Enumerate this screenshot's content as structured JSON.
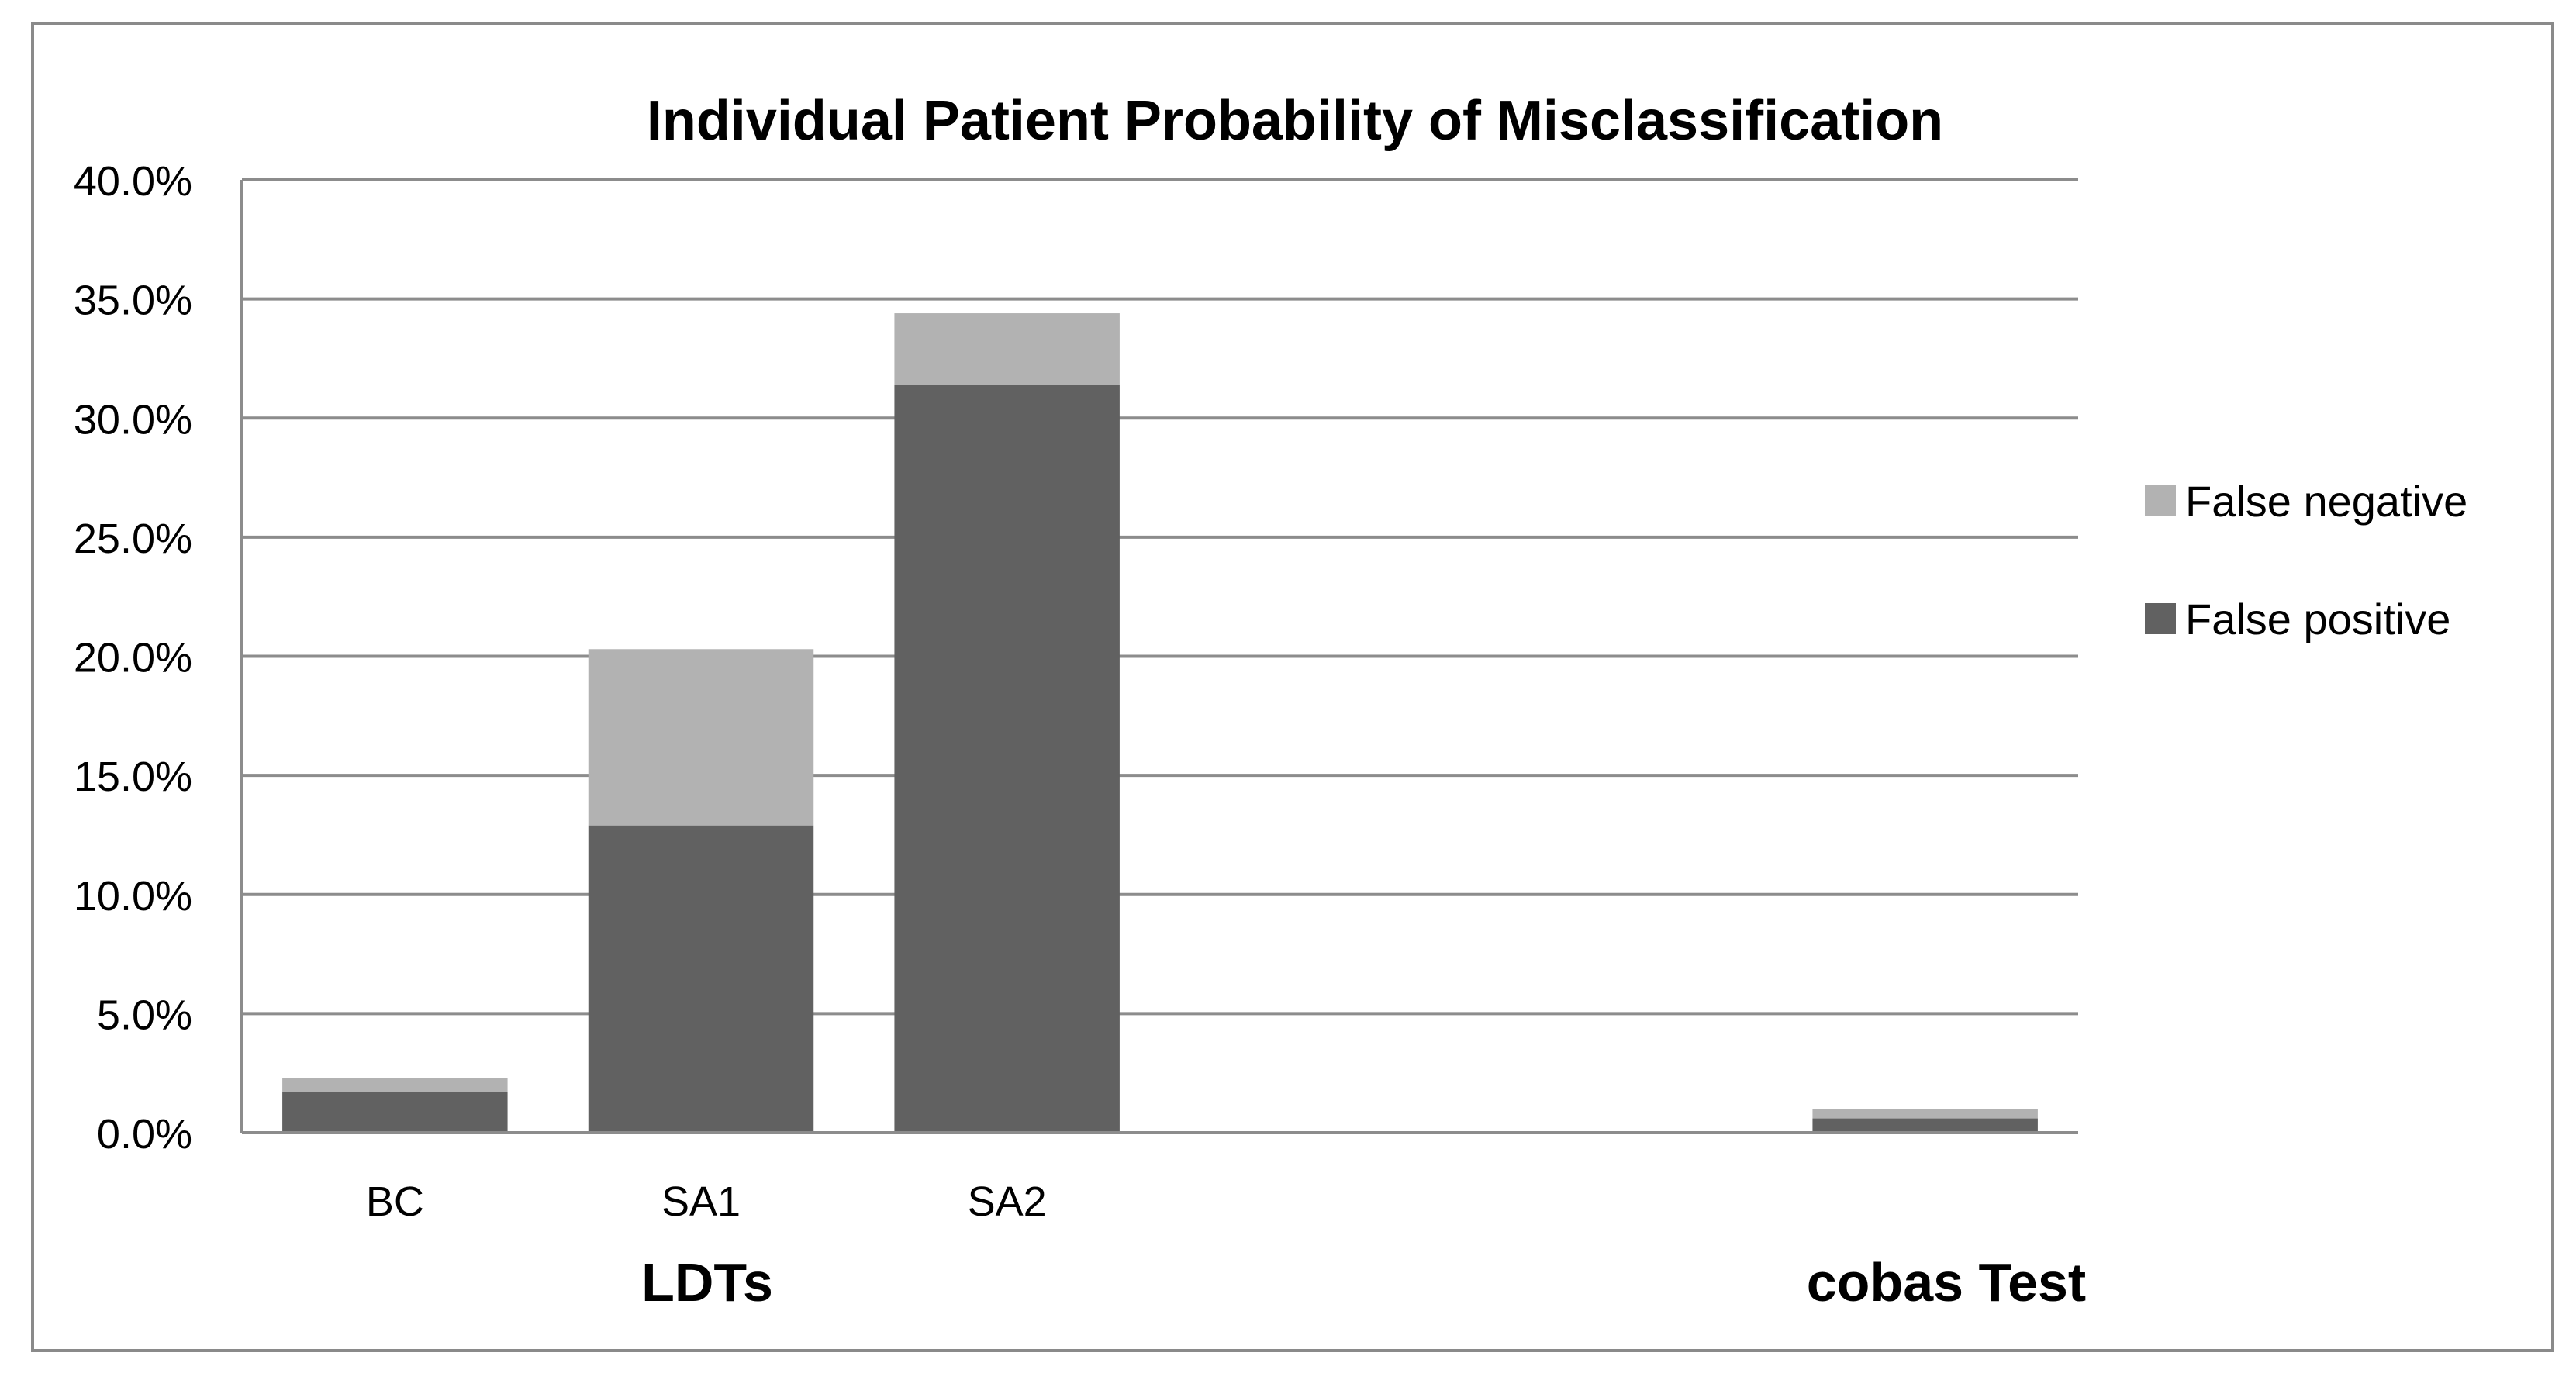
{
  "chart_data": {
    "type": "bar",
    "stacked": true,
    "title": "Individual Patient Probability of Misclassification",
    "categories": [
      "BC",
      "SA1",
      "SA2",
      "",
      "",
      "cobas"
    ],
    "category_labels": [
      "BC",
      "SA1",
      "SA2",
      "",
      "",
      ""
    ],
    "group_labels": [
      {
        "label": "LDTs"
      },
      {
        "label": "cobas Test"
      }
    ],
    "series": [
      {
        "name": "False positive",
        "color": "#616161",
        "values": [
          1.7,
          12.9,
          31.4,
          0,
          0,
          0.6
        ]
      },
      {
        "name": "False negative",
        "color": "#b2b2b2",
        "values": [
          0.6,
          7.4,
          3.0,
          0,
          0,
          0.4
        ]
      }
    ],
    "ylim": [
      0,
      40
    ],
    "yticks": [
      0,
      5,
      10,
      15,
      20,
      25,
      30,
      35,
      40
    ],
    "ytick_labels": [
      "0.0%",
      "5.0%",
      "10.0%",
      "15.0%",
      "20.0%",
      "25.0%",
      "30.0%",
      "35.0%",
      "40.0%"
    ],
    "grid": true,
    "legend": "right"
  }
}
